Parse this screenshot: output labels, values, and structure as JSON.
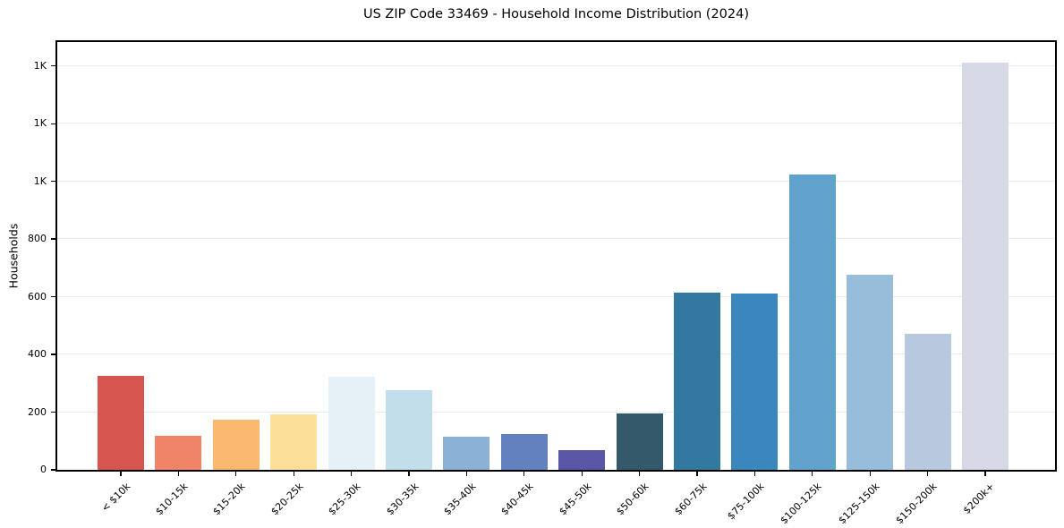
{
  "chart_data": {
    "type": "bar",
    "title": "US ZIP Code 33469 - Household Income Distribution (2024)",
    "xlabel": "",
    "ylabel": "Households",
    "categories": [
      "< $10k",
      "$10-15k",
      "$15-20k",
      "$20-25k",
      "$25-30k",
      "$30-35k",
      "$35-40k",
      "$40-45k",
      "$45-50k",
      "$50-60k",
      "$60-75k",
      "$75-100k",
      "$100-125k",
      "$125-150k",
      "$150-200k",
      "$200k+"
    ],
    "values": [
      325,
      119,
      175,
      192,
      324,
      277,
      115,
      124,
      69,
      194,
      614,
      610,
      1025,
      676,
      471,
      1412
    ],
    "bar_colors": [
      "#d6554e",
      "#ef8566",
      "#fab96e",
      "#fce09a",
      "#e5f1f6",
      "#c2deea",
      "#8bb2d6",
      "#6381bf",
      "#5b57a7",
      "#34596b",
      "#33789f",
      "#3a87bd",
      "#61a3cd",
      "#98bdda",
      "#b8c8de",
      "#d7dae6"
    ],
    "y_ticks": [
      {
        "value": 0,
        "label": "0"
      },
      {
        "value": 200,
        "label": "200"
      },
      {
        "value": 400,
        "label": "400"
      },
      {
        "value": 600,
        "label": "600"
      },
      {
        "value": 800,
        "label": "800"
      },
      {
        "value": 1000,
        "label": "1K"
      },
      {
        "value": 1200,
        "label": "1K"
      },
      {
        "value": 1400,
        "label": "1K"
      }
    ],
    "ylim": [
      0,
      1483
    ],
    "grid": "horizontal",
    "legend": "none",
    "background_color": "#ffffff",
    "axis_color": "#000000",
    "gridline_color": "#e9e9f2"
  }
}
